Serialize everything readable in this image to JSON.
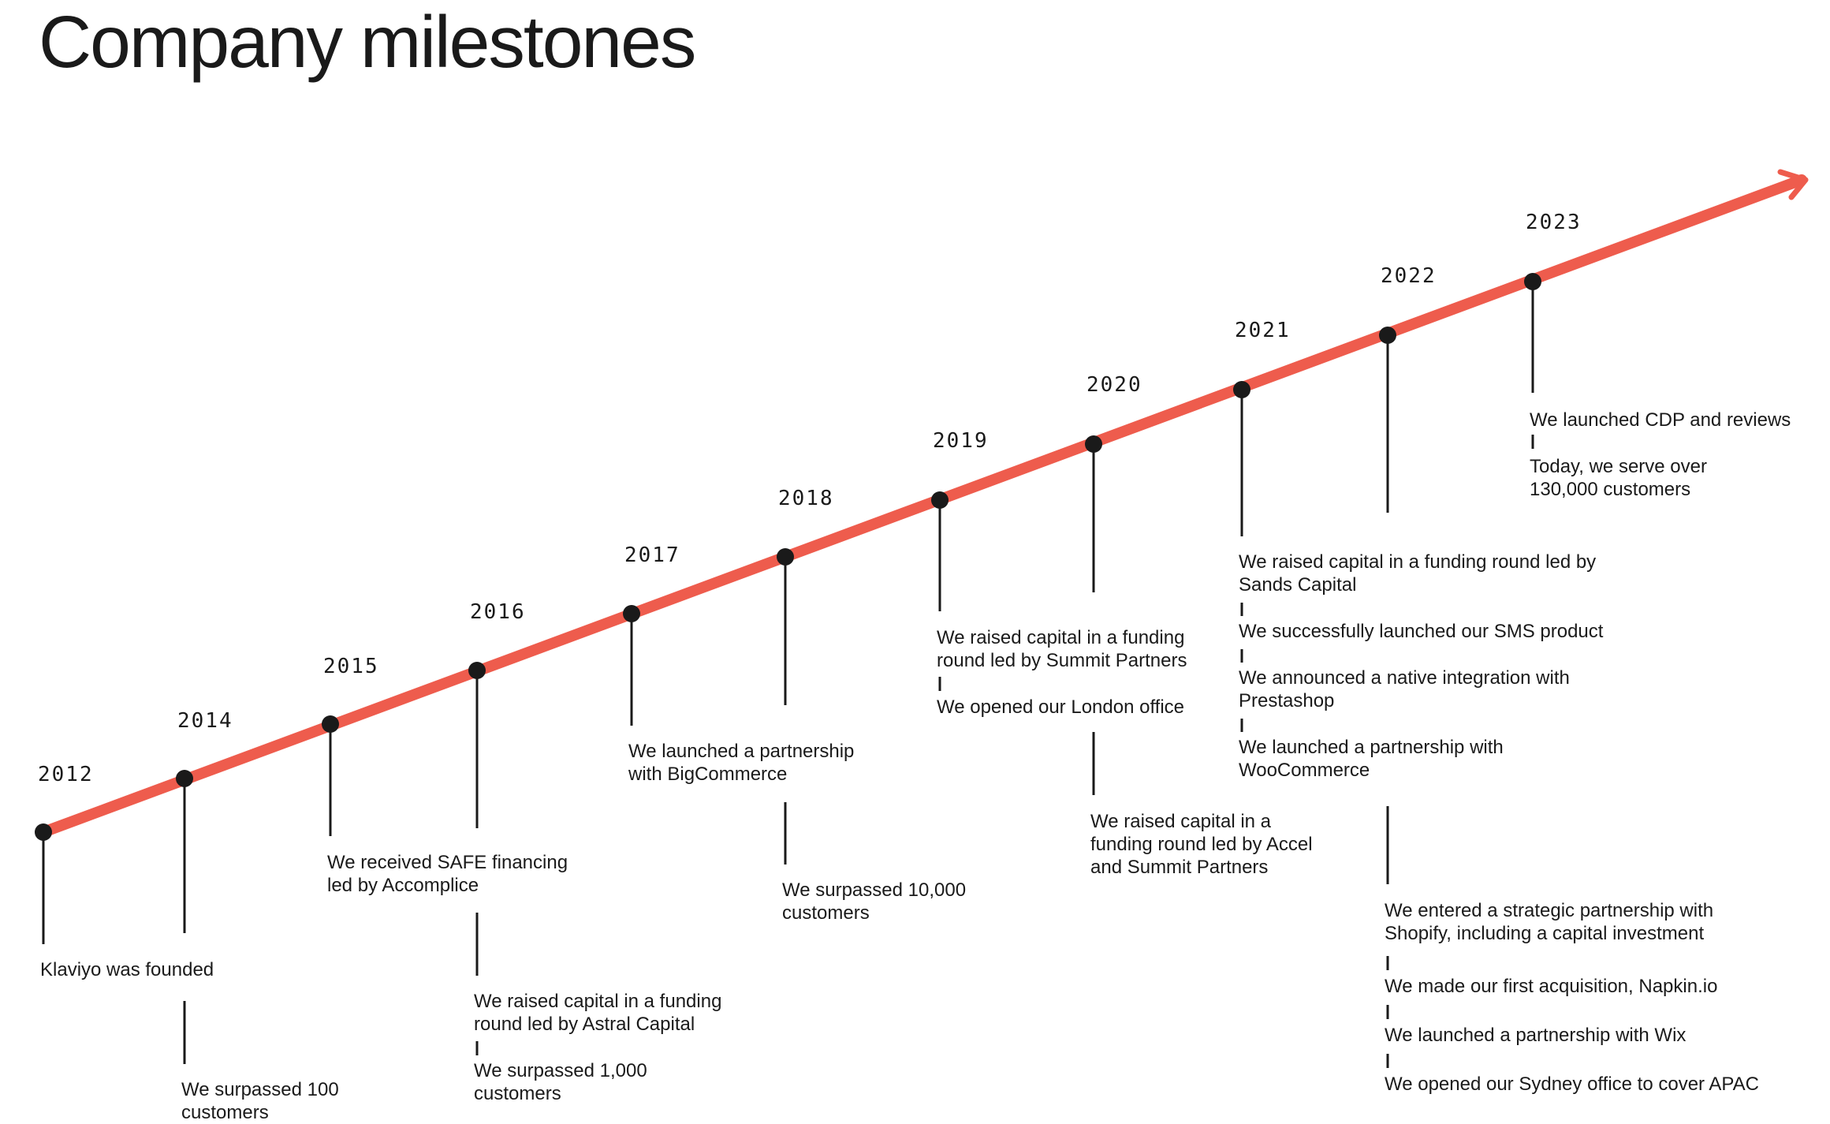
{
  "title": "Company milestones",
  "colors": {
    "line": "#EE5C4D",
    "dot": "#1a1a1a",
    "text": "#1a1a1a"
  },
  "years": [
    "2012",
    "2014",
    "2015",
    "2016",
    "2017",
    "2018",
    "2019",
    "2020",
    "2021",
    "2022",
    "2023"
  ],
  "milestones": {
    "m2012_1": "Klaviyo was founded",
    "m2014_1": "We surpassed 100\ncustomers",
    "m2015_1": "We received SAFE financing\nled by Accomplice",
    "m2016_1": "We raised capital in a funding\nround led by Astral Capital",
    "m2016_2": "We surpassed 1,000\ncustomers",
    "m2017_1": "We launched a partnership\nwith BigCommerce",
    "m2018_1": "We surpassed 10,000\ncustomers",
    "m2019_1": "We raised capital in a funding\nround led by Summit Partners",
    "m2019_2": "We opened our London office",
    "m2020_1": "We raised capital in a\nfunding round led by Accel\nand Summit Partners",
    "m2021_1": "We raised capital in a funding round led by\nSands Capital",
    "m2021_2": "We successfully launched our SMS product",
    "m2021_3": "We announced a native integration with\nPrestashop",
    "m2021_4": "We launched a partnership with\nWooCommerce",
    "m2022_1": "We entered a strategic partnership with\nShopify, including a capital investment",
    "m2022_2": "We made our first acquisition, Napkin.io",
    "m2022_3": "We launched a partnership with Wix",
    "m2022_4": "We opened our Sydney office to cover APAC",
    "m2023_1": "We launched CDP and reviews",
    "m2023_2": "Today, we serve over\n130,000 customers"
  }
}
